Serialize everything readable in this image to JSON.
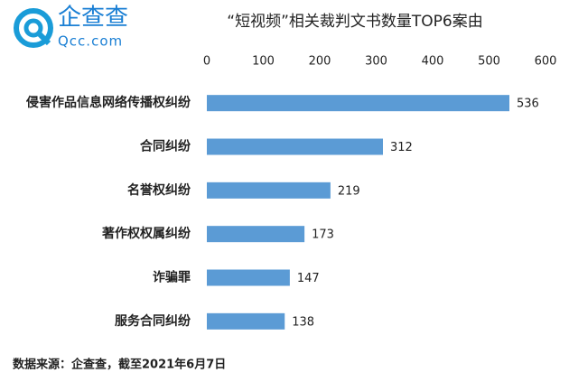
{
  "logo": {
    "name": "企查查",
    "site": "Qcc.com"
  },
  "chart_data": {
    "type": "bar",
    "orientation": "horizontal",
    "title": "“短视频”相关裁判文书数量TOP6案由",
    "categories": [
      "侵害作品信息网络传播权纠纷",
      "合同纠纷",
      "名誉权纠纷",
      "著作权权属纠纷",
      "诈骗罪",
      "服务合同纠纷"
    ],
    "values": [
      536,
      312,
      219,
      173,
      147,
      138
    ],
    "color": "#5b9bd5",
    "xlim": [
      0,
      600
    ],
    "xticks": [
      0,
      100,
      200,
      300,
      400,
      500,
      600
    ],
    "grid": false,
    "source": "数据来源：企查查，截至2021年6月7日"
  }
}
